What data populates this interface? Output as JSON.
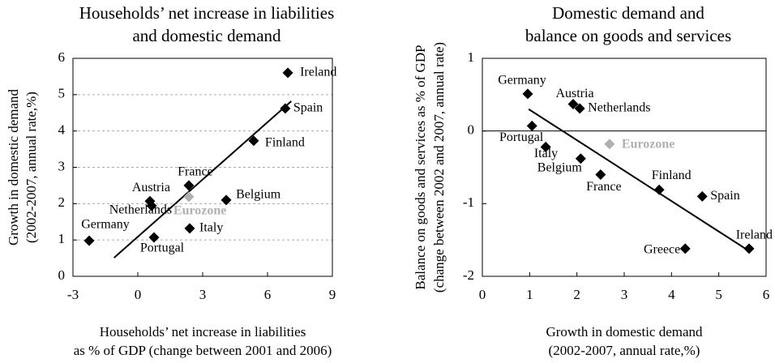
{
  "chart_data": [
    {
      "type": "scatter",
      "title": [
        "Households’ net increase in liabilities",
        "and domestic demand"
      ],
      "xlabel": [
        "Households’ net increase in liabilities",
        "as % of GDP (change between 2001 and 2006)"
      ],
      "ylabel": [
        "Growth in domestic demand",
        "(2002-2007, annual rate,%)"
      ],
      "xlim": [
        -3,
        9
      ],
      "xticks": [
        -3,
        0,
        3,
        6,
        9
      ],
      "ylim": [
        0,
        6
      ],
      "yticks": [
        0,
        1,
        2,
        3,
        4,
        5,
        6
      ],
      "grid": true,
      "color": "#000000",
      "points": [
        {
          "label": "Ireland",
          "x": 6.94,
          "y": 5.6
        },
        {
          "label": "Spain",
          "x": 6.82,
          "y": 4.62
        },
        {
          "label": "Finland",
          "x": 5.36,
          "y": 3.73
        },
        {
          "label": "France",
          "x": 2.36,
          "y": 2.5
        },
        {
          "label": "Belgium",
          "x": 4.09,
          "y": 2.1
        },
        {
          "label": "Austria",
          "x": 0.56,
          "y": 2.07
        },
        {
          "label": "Netherlands",
          "x": 0.64,
          "y": 1.94
        },
        {
          "label": "Eurozone",
          "x": 2.36,
          "y": 2.19,
          "color": "#b0b0b0"
        },
        {
          "label": "Italy",
          "x": 2.4,
          "y": 1.32
        },
        {
          "label": "Portugal",
          "x": 0.75,
          "y": 1.07
        },
        {
          "label": "Germany",
          "x": -2.25,
          "y": 0.98
        }
      ],
      "trendline": {
        "x": [
          -1.1,
          7.1
        ],
        "y": [
          0.51,
          4.82
        ]
      }
    },
    {
      "type": "scatter",
      "title": [
        "Domestic demand and",
        "balance on goods and services"
      ],
      "xlabel": [
        "Growth in domestic demand",
        "(2002-2007, annual rate,%)"
      ],
      "ylabel": [
        "Balance on goods and services as % of GDP",
        "(change between 2002 and 2007, annual rate)"
      ],
      "xlim": [
        0,
        6
      ],
      "xticks": [
        0,
        1,
        2,
        3,
        4,
        5,
        6
      ],
      "ylim": [
        -2,
        1
      ],
      "yticks": [
        -2,
        -1,
        0,
        1
      ],
      "zero_line": true,
      "color": "#000000",
      "points": [
        {
          "label": "Germany",
          "x": 0.96,
          "y": 0.51
        },
        {
          "label": "Austria",
          "x": 1.92,
          "y": 0.37
        },
        {
          "label": "Netherlands",
          "x": 2.06,
          "y": 0.31
        },
        {
          "label": "Portugal",
          "x": 1.05,
          "y": 0.07
        },
        {
          "label": "Italy",
          "x": 1.34,
          "y": -0.22
        },
        {
          "label": "Eurozone",
          "x": 2.69,
          "y": -0.18,
          "color": "#b0b0b0"
        },
        {
          "label": "Belgium",
          "x": 2.08,
          "y": -0.38
        },
        {
          "label": "France",
          "x": 2.5,
          "y": -0.6
        },
        {
          "label": "Finland",
          "x": 3.74,
          "y": -0.81
        },
        {
          "label": "Spain",
          "x": 4.65,
          "y": -0.9
        },
        {
          "label": "Greece",
          "x": 4.29,
          "y": -1.62
        },
        {
          "label": "Ireland",
          "x": 5.64,
          "y": -1.62
        }
      ],
      "trendline": {
        "x": [
          0.98,
          5.66
        ],
        "y": [
          0.3,
          -1.66
        ]
      }
    }
  ]
}
